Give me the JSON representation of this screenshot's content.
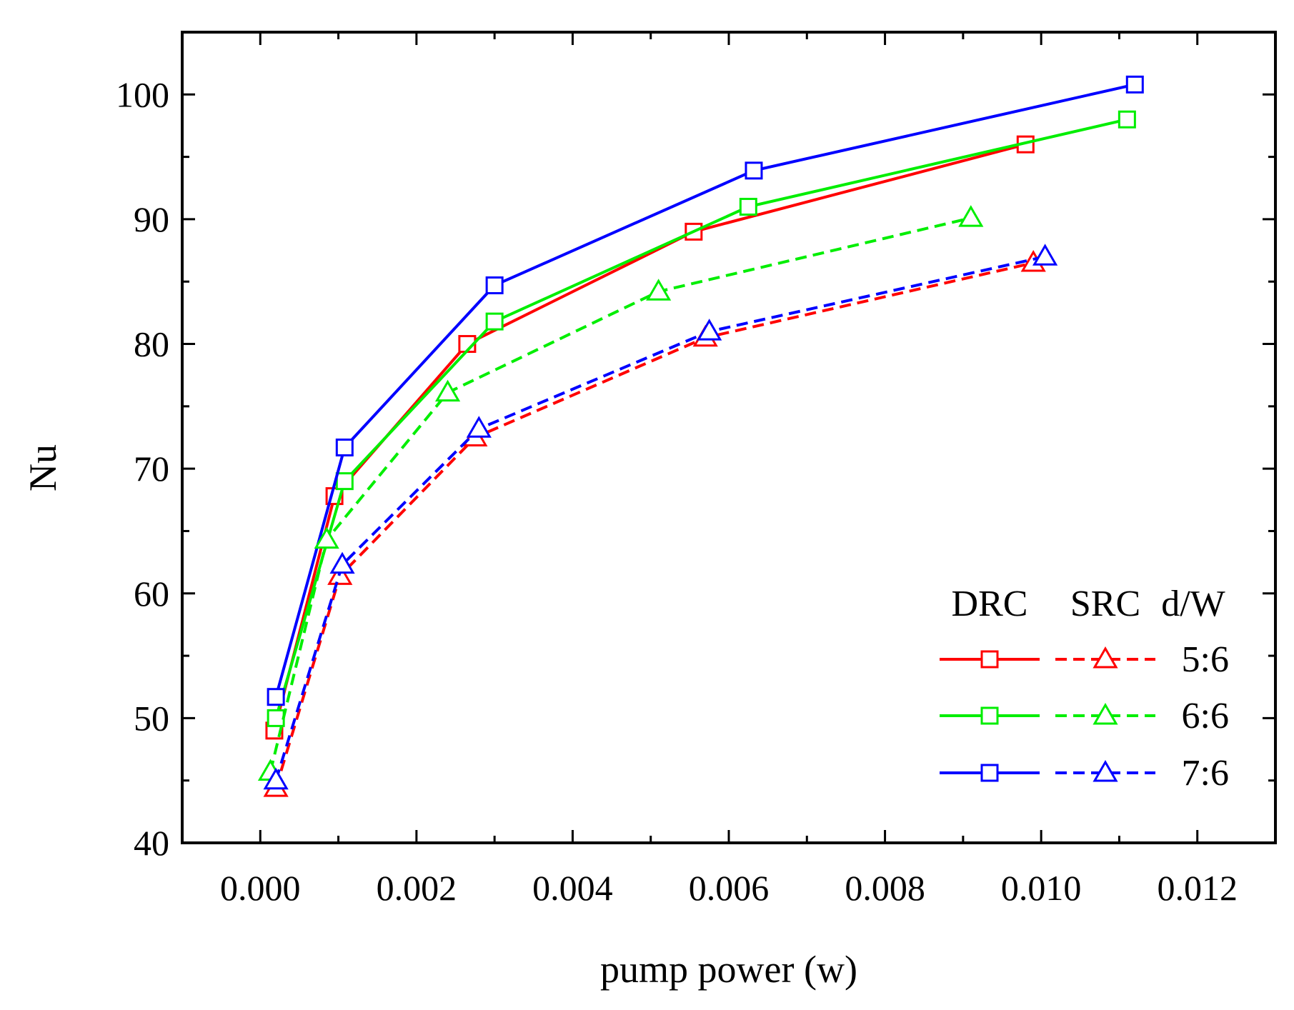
{
  "chart_data": {
    "type": "line",
    "title": "",
    "xlabel": "pump power (w)",
    "ylabel": "Nu",
    "xlim": [
      -0.001,
      0.013
    ],
    "ylim": [
      40,
      105
    ],
    "xticks": [
      "0.000",
      "0.002",
      "0.004",
      "0.006",
      "0.008",
      "0.010",
      "0.012"
    ],
    "xtick_values": [
      0,
      0.002,
      0.004,
      0.006,
      0.008,
      0.01,
      0.012
    ],
    "yticks": [
      "40",
      "50",
      "60",
      "70",
      "80",
      "90",
      "100"
    ],
    "ytick_values": [
      40,
      50,
      60,
      70,
      80,
      90,
      100
    ],
    "grid": false,
    "legend": {
      "position": "right-middle",
      "headers": [
        "DRC",
        "SRC",
        "d/W"
      ],
      "rows": [
        "5:6",
        "6:6",
        "7:6"
      ]
    },
    "series": [
      {
        "name": "DRC 5:6",
        "group": "DRC",
        "ratio": "5:6",
        "color": "#ff0000",
        "marker": "square",
        "style": "solid",
        "x": [
          0.00018,
          0.00095,
          0.00265,
          0.00555,
          0.0098
        ],
        "y": [
          49,
          67.8,
          80,
          89,
          96
        ]
      },
      {
        "name": "DRC 6:6",
        "group": "DRC",
        "ratio": "6:6",
        "color": "#00ee00",
        "marker": "square",
        "style": "solid",
        "x": [
          0.0002,
          0.00108,
          0.003,
          0.00625,
          0.0111
        ],
        "y": [
          50,
          69,
          81.8,
          91,
          98
        ]
      },
      {
        "name": "DRC 7:6",
        "group": "DRC",
        "ratio": "7:6",
        "color": "#0000ff",
        "marker": "square",
        "style": "solid",
        "x": [
          0.0002,
          0.00108,
          0.003,
          0.00632,
          0.0112
        ],
        "y": [
          51.7,
          71.7,
          84.7,
          93.9,
          100.8
        ]
      },
      {
        "name": "SRC 5:6",
        "group": "SRC",
        "ratio": "5:6",
        "color": "#ff0000",
        "marker": "triangle",
        "style": "dashed",
        "x": [
          0.0002,
          0.00102,
          0.00275,
          0.0057,
          0.0099
        ],
        "y": [
          44.4,
          61.4,
          72.5,
          80.5,
          86.5
        ]
      },
      {
        "name": "SRC 6:6",
        "group": "SRC",
        "ratio": "6:6",
        "color": "#00ee00",
        "marker": "triangle",
        "style": "dashed",
        "x": [
          0.00013,
          0.00085,
          0.0024,
          0.0051,
          0.0091
        ],
        "y": [
          45.7,
          64.3,
          76.1,
          84.2,
          90.1
        ]
      },
      {
        "name": "SRC 7:6",
        "group": "SRC",
        "ratio": "7:6",
        "color": "#0000ff",
        "marker": "triangle",
        "style": "dashed",
        "x": [
          0.0002,
          0.00105,
          0.0028,
          0.00575,
          0.01005
        ],
        "y": [
          45,
          62.3,
          73.2,
          81,
          87
        ]
      }
    ]
  }
}
